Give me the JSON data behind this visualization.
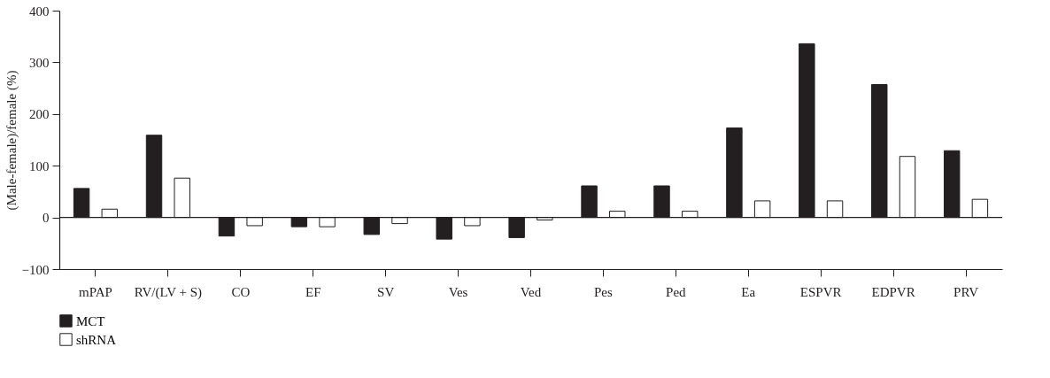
{
  "chart_data": {
    "type": "bar",
    "ylabel": "(Male-female)/female (%)",
    "categories": [
      "mPAP",
      "RV/(LV + S)",
      "CO",
      "EF",
      "SV",
      "Ves",
      "Ved",
      "Pes",
      "Ped",
      "Ea",
      "ESPVR",
      "EDPVR",
      "PRV"
    ],
    "series": [
      {
        "name": "MCT",
        "color": "#231f20",
        "values": [
          56,
          159,
          -36,
          -18,
          -33,
          -42,
          -39,
          61,
          61,
          173,
          336,
          257,
          129
        ]
      },
      {
        "name": "shRNA",
        "color": "#ffffff",
        "values": [
          16,
          76,
          -16,
          -18,
          -12,
          -16,
          -5,
          12,
          12,
          32,
          32,
          118,
          35
        ]
      }
    ],
    "ylim": [
      -100,
      400
    ],
    "yticks": [
      -100,
      0,
      100,
      200,
      300,
      400
    ],
    "grid": false,
    "legend": "bottom left",
    "ref_lines": [
      {
        "axis": "y",
        "value": 0,
        "label": null
      }
    ]
  }
}
